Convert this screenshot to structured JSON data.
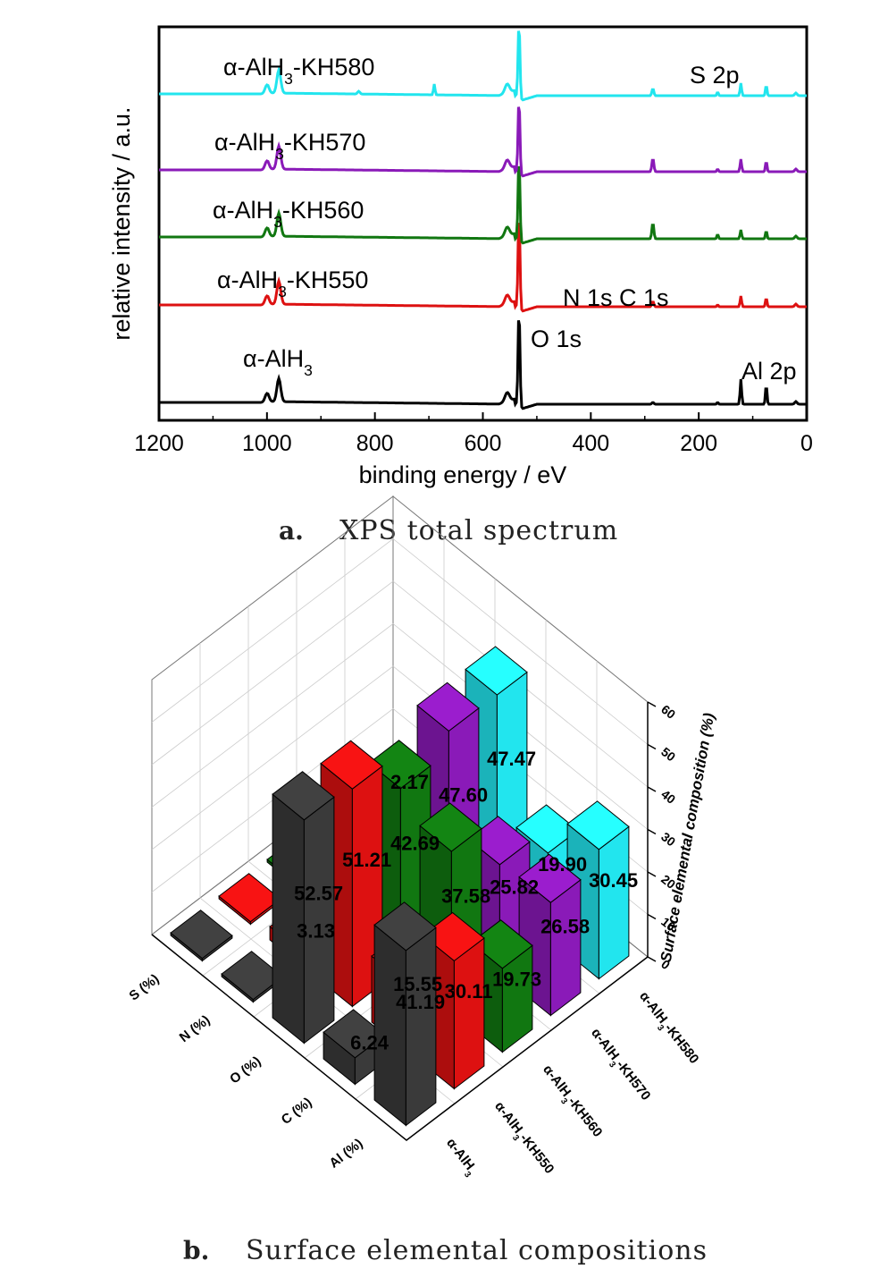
{
  "chart_data": [
    {
      "type": "line",
      "panel": "a",
      "caption_letter": "a.",
      "caption": "XPS total spectrum",
      "xlabel": "binding energy / eV",
      "ylabel": "relative intensity / a.u.",
      "xlim": [
        1200,
        0
      ],
      "x_ticks": [
        "1200",
        "1000",
        "800",
        "600",
        "400",
        "200",
        "0"
      ],
      "grid": false,
      "series": [
        {
          "name": "α-AlH3",
          "color": "#000000"
        },
        {
          "name": "α-AlH3-KH550",
          "color": "#dd1111"
        },
        {
          "name": "α-AlH3-KH560",
          "color": "#117711"
        },
        {
          "name": "α-AlH3-KH570",
          "color": "#8a1ab8"
        },
        {
          "name": "α-AlH3-KH580",
          "color": "#22e5ee"
        }
      ],
      "series_labels": [
        {
          "prefix": "α-AlH",
          "sub": "3",
          "suffix": ""
        },
        {
          "prefix": "α-AlH",
          "sub": "3",
          "suffix": "-KH550"
        },
        {
          "prefix": "α-AlH",
          "sub": "3",
          "suffix": "-KH560"
        },
        {
          "prefix": "α-AlH",
          "sub": "3",
          "suffix": "-KH570"
        },
        {
          "prefix": "α-AlH",
          "sub": "3",
          "suffix": "-KH580"
        }
      ],
      "peak_labels": [
        {
          "text": "O 1s",
          "x": 531
        },
        {
          "text": "N 1s C 1s",
          "x": 400
        },
        {
          "text": "S 2p",
          "x": 164
        },
        {
          "text": "Al 2p",
          "x": 74
        }
      ]
    },
    {
      "type": "bar3d",
      "panel": "b",
      "caption_letter": "b.",
      "caption": "Surface elemental compositions",
      "elements": [
        "S (%)",
        "N (%)",
        "O (%)",
        "C (%)",
        "Al (%)"
      ],
      "samples": [
        "α-AlH3",
        "α-AlH3-KH550",
        "α-AlH3-KH560",
        "α-AlH3-KH570",
        "α-AlH3-KH580"
      ],
      "sample_labels": [
        {
          "prefix": "α-AlH",
          "sub": "3",
          "suffix": ""
        },
        {
          "prefix": "α-AlH",
          "sub": "3",
          "suffix": "-KH550"
        },
        {
          "prefix": "α-AlH",
          "sub": "3",
          "suffix": "-KH560"
        },
        {
          "prefix": "α-AlH",
          "sub": "3",
          "suffix": "-KH570"
        },
        {
          "prefix": "α-AlH",
          "sub": "3",
          "suffix": "-KH580"
        }
      ],
      "colors": [
        "#3a3a3a",
        "#dd1111",
        "#117711",
        "#8a1ab8",
        "#22e5ee"
      ],
      "zlabel": "Surface elemental composition (%)",
      "zlim": [
        0,
        60
      ],
      "z_ticks": [
        "0",
        "10",
        "20",
        "30",
        "40",
        "50",
        "60"
      ],
      "values": [
        [
          0,
          0,
          52.57,
          6.24,
          41.19
        ],
        [
          0,
          3.13,
          51.21,
          15.55,
          30.11
        ],
        [
          0,
          0,
          42.69,
          37.58,
          19.73
        ],
        [
          0,
          0,
          47.6,
          25.82,
          26.58
        ],
        [
          2.17,
          0,
          47.47,
          19.9,
          30.45
        ]
      ],
      "labels": [
        [
          null,
          null,
          "52.57",
          "6.24",
          "41.19"
        ],
        [
          null,
          "3.13",
          "51.21",
          "15.55",
          "30.11"
        ],
        [
          null,
          null,
          "42.69",
          "37.58",
          "19.73"
        ],
        [
          null,
          null,
          "47.60",
          "25.82",
          "26.58"
        ],
        [
          "2.17",
          null,
          "47.47",
          "19.90",
          "30.45"
        ]
      ]
    }
  ]
}
